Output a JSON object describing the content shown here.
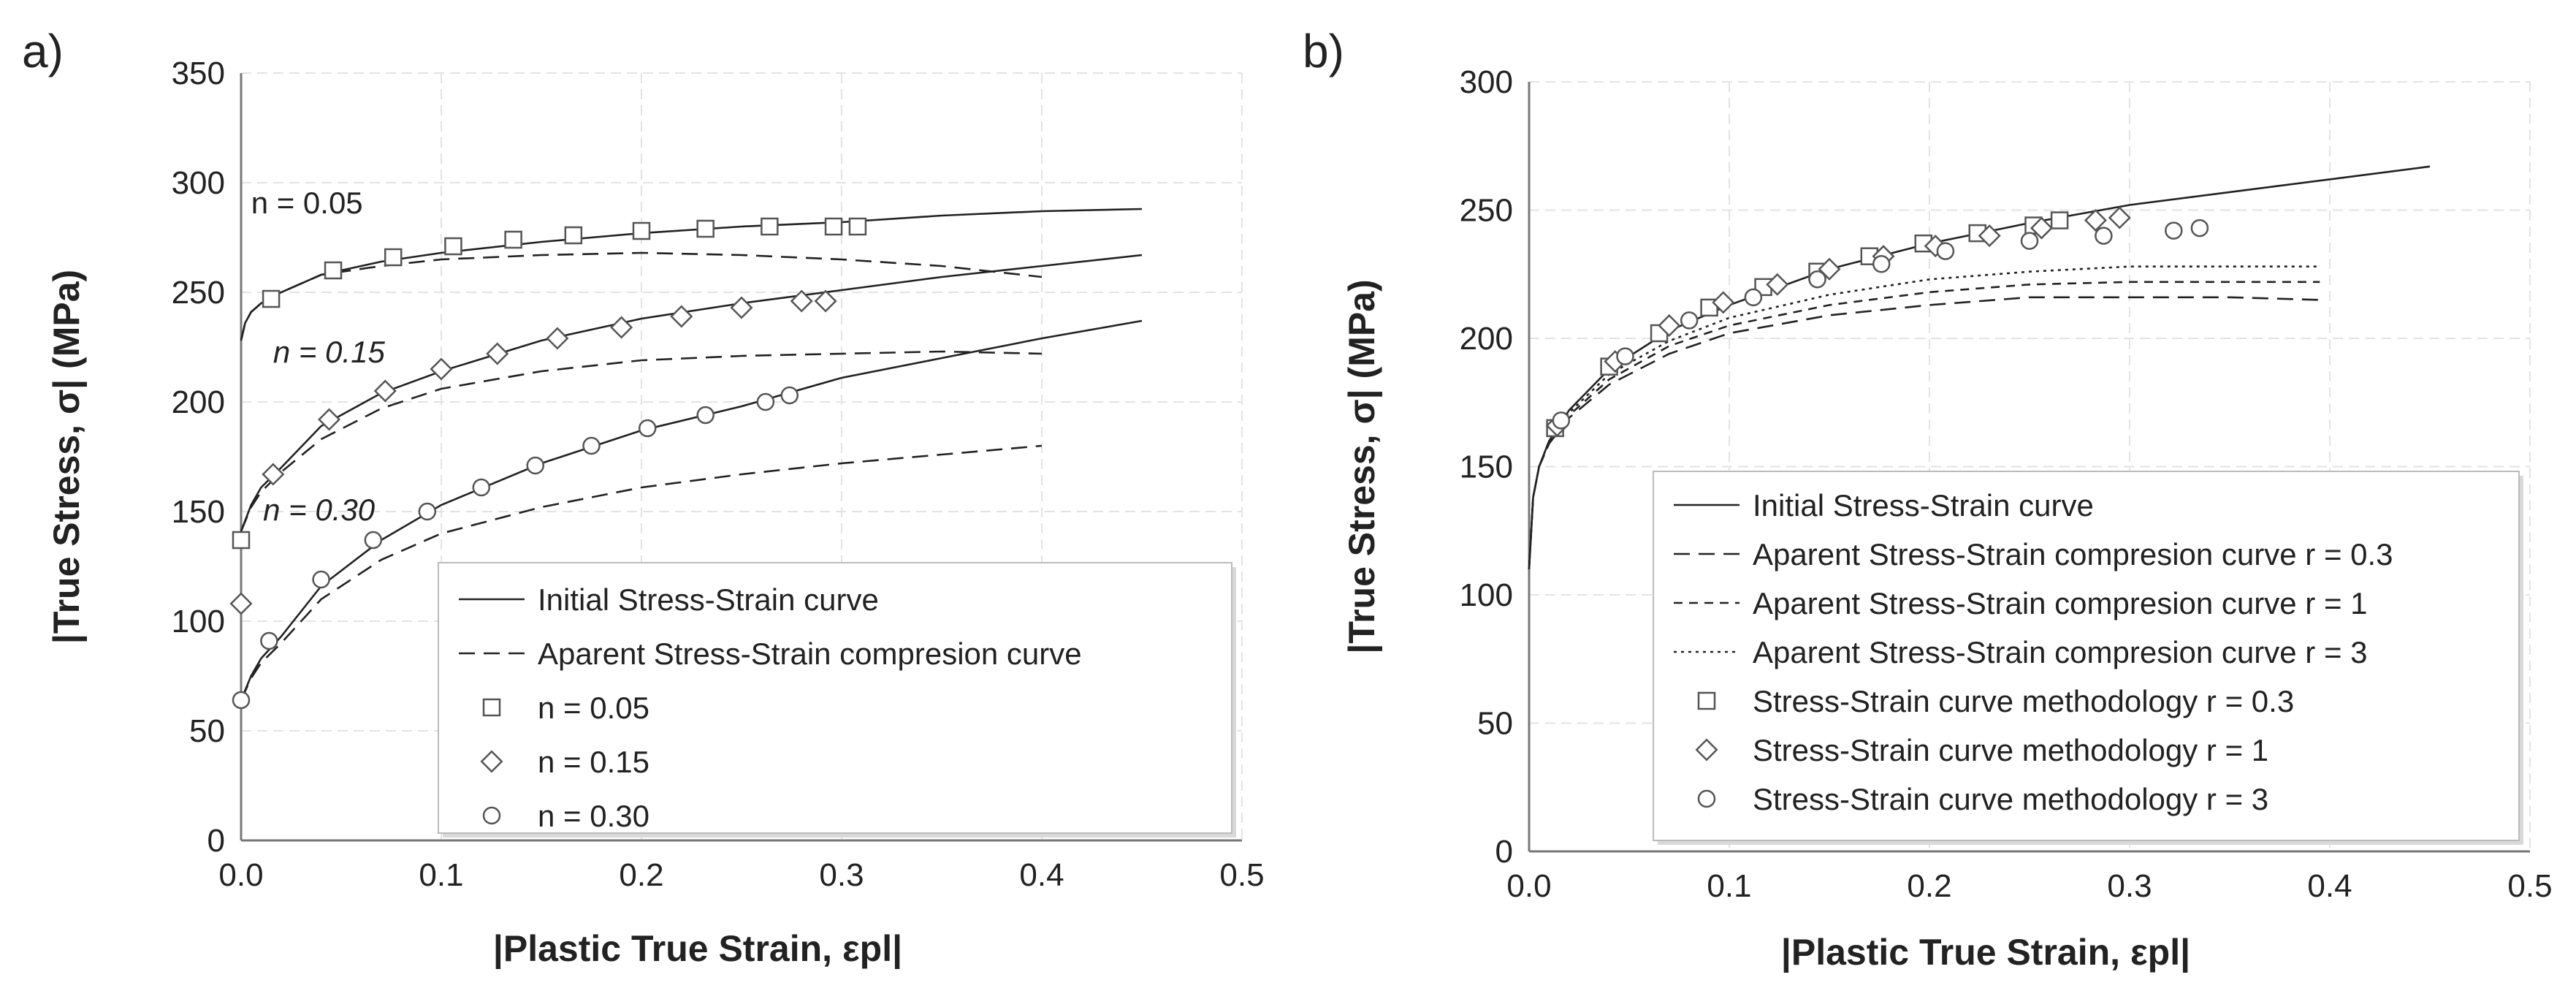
{
  "figure": {
    "panels": [
      "a)",
      "b)"
    ]
  },
  "chart_data": [
    {
      "type": "line",
      "panel_label": "a)",
      "xlabel": "|Plastic True Strain, εpl|",
      "ylabel": "|True Stress, σ| (MPa)",
      "xlim": [
        0,
        0.5
      ],
      "ylim": [
        0,
        350
      ],
      "xticks": [
        "0.0",
        "0.1",
        "0.2",
        "0.3",
        "0.4",
        "0.5"
      ],
      "yticks": [
        "0",
        "50",
        "100",
        "150",
        "200",
        "250",
        "300",
        "350"
      ],
      "grid": true,
      "legend_position": "bottom-right",
      "legend": [
        {
          "label": "Initial Stress-Strain curve",
          "style": "solid"
        },
        {
          "label": "Aparent Stress-Strain compresion curve",
          "style": "dashed"
        },
        {
          "label": "n = 0.05",
          "style": "square"
        },
        {
          "label": "n = 0.15",
          "style": "diamond"
        },
        {
          "label": "n = 0.30",
          "style": "circle"
        }
      ],
      "annotations": [
        {
          "text": "n = 0.05",
          "x": 0.005,
          "y": 286,
          "italic": false
        },
        {
          "text": "n = 0.15",
          "x": 0.016,
          "y": 218,
          "italic": true
        },
        {
          "text": "n = 0.30",
          "x": 0.011,
          "y": 146,
          "italic": true
        }
      ],
      "series": [
        {
          "name": "Initial n=0.05",
          "style": "solid",
          "x": [
            0,
            0.002,
            0.005,
            0.01,
            0.02,
            0.04,
            0.07,
            0.1,
            0.15,
            0.2,
            0.25,
            0.3,
            0.35,
            0.4,
            0.45
          ],
          "y": [
            228,
            236,
            241,
            245,
            250,
            258,
            264,
            268,
            273,
            277,
            280,
            282,
            285,
            287,
            288
          ]
        },
        {
          "name": "Apparent n=0.05",
          "style": "dashed",
          "x": [
            0,
            0.002,
            0.005,
            0.01,
            0.02,
            0.04,
            0.07,
            0.1,
            0.15,
            0.2,
            0.25,
            0.3,
            0.35,
            0.4
          ],
          "y": [
            228,
            236,
            241,
            245,
            250,
            258,
            262,
            265,
            267,
            268,
            267,
            265,
            262,
            257
          ]
        },
        {
          "name": "Initial n=0.15",
          "style": "solid",
          "x": [
            0,
            0.005,
            0.01,
            0.02,
            0.04,
            0.07,
            0.1,
            0.15,
            0.2,
            0.25,
            0.3,
            0.35,
            0.4,
            0.45
          ],
          "y": [
            141,
            153,
            161,
            170,
            189,
            204,
            214,
            228,
            238,
            245,
            251,
            257,
            262,
            267
          ]
        },
        {
          "name": "Apparent n=0.15",
          "style": "dashed",
          "x": [
            0,
            0.005,
            0.01,
            0.02,
            0.04,
            0.07,
            0.1,
            0.15,
            0.2,
            0.25,
            0.3,
            0.35,
            0.4
          ],
          "y": [
            141,
            152,
            159,
            168,
            183,
            197,
            206,
            214,
            219,
            221,
            222,
            223,
            222
          ]
        },
        {
          "name": "Initial n=0.30",
          "style": "solid",
          "x": [
            0,
            0.005,
            0.01,
            0.02,
            0.04,
            0.07,
            0.1,
            0.15,
            0.2,
            0.25,
            0.3,
            0.35,
            0.4,
            0.45
          ],
          "y": [
            64,
            75,
            83,
            93,
            116,
            137,
            153,
            172,
            187,
            198,
            211,
            220,
            229,
            237
          ]
        },
        {
          "name": "Apparent n=0.30",
          "style": "dashed",
          "x": [
            0,
            0.005,
            0.01,
            0.02,
            0.04,
            0.07,
            0.1,
            0.15,
            0.2,
            0.25,
            0.3,
            0.35,
            0.4
          ],
          "y": [
            64,
            74,
            81,
            90,
            110,
            128,
            140,
            152,
            161,
            167,
            172,
            176,
            180
          ]
        },
        {
          "name": "n = 0.05",
          "style": "square",
          "x": [
            0.0,
            0.015,
            0.046,
            0.076,
            0.106,
            0.136,
            0.166,
            0.2,
            0.232,
            0.264,
            0.296,
            0.308
          ],
          "y": [
            137,
            247,
            260,
            266,
            271,
            274,
            276,
            278,
            279,
            280,
            280,
            280
          ]
        },
        {
          "name": "n = 0.15",
          "style": "diamond",
          "x": [
            0.0,
            0.016,
            0.044,
            0.072,
            0.1,
            0.128,
            0.158,
            0.19,
            0.22,
            0.25,
            0.28,
            0.292
          ],
          "y": [
            108,
            167,
            192,
            205,
            215,
            222,
            229,
            234,
            239,
            243,
            246,
            246
          ]
        },
        {
          "name": "n = 0.30",
          "style": "circle",
          "x": [
            0.0,
            0.014,
            0.04,
            0.066,
            0.093,
            0.12,
            0.147,
            0.175,
            0.203,
            0.232,
            0.262,
            0.274
          ],
          "y": [
            64,
            91,
            119,
            137,
            150,
            161,
            171,
            180,
            188,
            194,
            200,
            203
          ]
        }
      ]
    },
    {
      "type": "line",
      "panel_label": "b)",
      "xlabel": "|Plastic True Strain, εpl|",
      "ylabel": "|True Stress, σ| (MPa)",
      "xlim": [
        0,
        0.5
      ],
      "ylim": [
        0,
        300
      ],
      "xticks": [
        "0.0",
        "0.1",
        "0.2",
        "0.3",
        "0.4",
        "0.5"
      ],
      "yticks": [
        "0",
        "50",
        "100",
        "150",
        "200",
        "250",
        "300"
      ],
      "grid": true,
      "legend_position": "bottom-right",
      "legend": [
        {
          "label": "Initial Stress-Strain curve",
          "style": "solid"
        },
        {
          "label": "Aparent Stress-Strain compresion curve r = 0.3",
          "style": "dashed"
        },
        {
          "label": "Aparent Stress-Strain compresion curve r = 1",
          "style": "shortdash"
        },
        {
          "label": "Aparent Stress-Strain compresion curve r = 3",
          "style": "dotted"
        },
        {
          "label": "Stress-Strain curve methodology r = 0.3",
          "style": "square"
        },
        {
          "label": "Stress-Strain curve methodology r = 1",
          "style": "diamond"
        },
        {
          "label": "Stress-Strain curve methodology r = 3",
          "style": "circle"
        }
      ],
      "annotations": [],
      "series": [
        {
          "name": "Initial",
          "style": "solid",
          "x": [
            0,
            0.002,
            0.005,
            0.01,
            0.02,
            0.04,
            0.07,
            0.1,
            0.15,
            0.2,
            0.25,
            0.3,
            0.35,
            0.4,
            0.45
          ],
          "y": [
            110,
            138,
            150,
            160,
            172,
            188,
            203,
            213,
            227,
            237,
            245,
            252,
            257,
            262,
            267
          ]
        },
        {
          "name": "Apparent r=0.3",
          "style": "dashed",
          "x": [
            0,
            0.002,
            0.005,
            0.01,
            0.02,
            0.04,
            0.07,
            0.1,
            0.15,
            0.2,
            0.25,
            0.3,
            0.35,
            0.395
          ],
          "y": [
            110,
            138,
            150,
            159,
            169,
            182,
            194,
            202,
            209,
            213,
            216,
            216,
            216,
            215
          ]
        },
        {
          "name": "Apparent r=1",
          "style": "shortdash",
          "x": [
            0,
            0.002,
            0.005,
            0.01,
            0.02,
            0.04,
            0.07,
            0.1,
            0.15,
            0.2,
            0.25,
            0.3,
            0.35,
            0.395
          ],
          "y": [
            110,
            138,
            150,
            159,
            170,
            184,
            197,
            205,
            213,
            218,
            221,
            222,
            222,
            222
          ]
        },
        {
          "name": "Apparent r=3",
          "style": "dotted",
          "x": [
            0,
            0.002,
            0.005,
            0.01,
            0.02,
            0.04,
            0.07,
            0.1,
            0.15,
            0.2,
            0.25,
            0.3,
            0.35,
            0.395
          ],
          "y": [
            110,
            138,
            150,
            160,
            171,
            186,
            199,
            208,
            217,
            223,
            226,
            228,
            228,
            228
          ]
        },
        {
          "name": "Stress-Strain curve methodology r = 0.3",
          "style": "square",
          "x": [
            0.013,
            0.04,
            0.065,
            0.09,
            0.117,
            0.144,
            0.17,
            0.197,
            0.224,
            0.252,
            0.265
          ],
          "y": [
            165,
            189,
            202,
            212,
            220,
            226,
            232,
            237,
            241,
            244,
            246
          ]
        },
        {
          "name": "Stress-Strain curve methodology r = 1",
          "style": "diamond",
          "x": [
            0.014,
            0.043,
            0.07,
            0.097,
            0.124,
            0.15,
            0.177,
            0.203,
            0.23,
            0.256,
            0.283,
            0.295
          ],
          "y": [
            166,
            191,
            205,
            214,
            221,
            227,
            232,
            236,
            240,
            243,
            246,
            247
          ]
        },
        {
          "name": "Stress-Strain curve methodology r = 3",
          "style": "circle",
          "x": [
            0.016,
            0.048,
            0.08,
            0.112,
            0.144,
            0.176,
            0.208,
            0.25,
            0.287,
            0.322,
            0.335
          ],
          "y": [
            168,
            193,
            207,
            216,
            223,
            229,
            234,
            238,
            240,
            242,
            243
          ]
        }
      ]
    }
  ]
}
